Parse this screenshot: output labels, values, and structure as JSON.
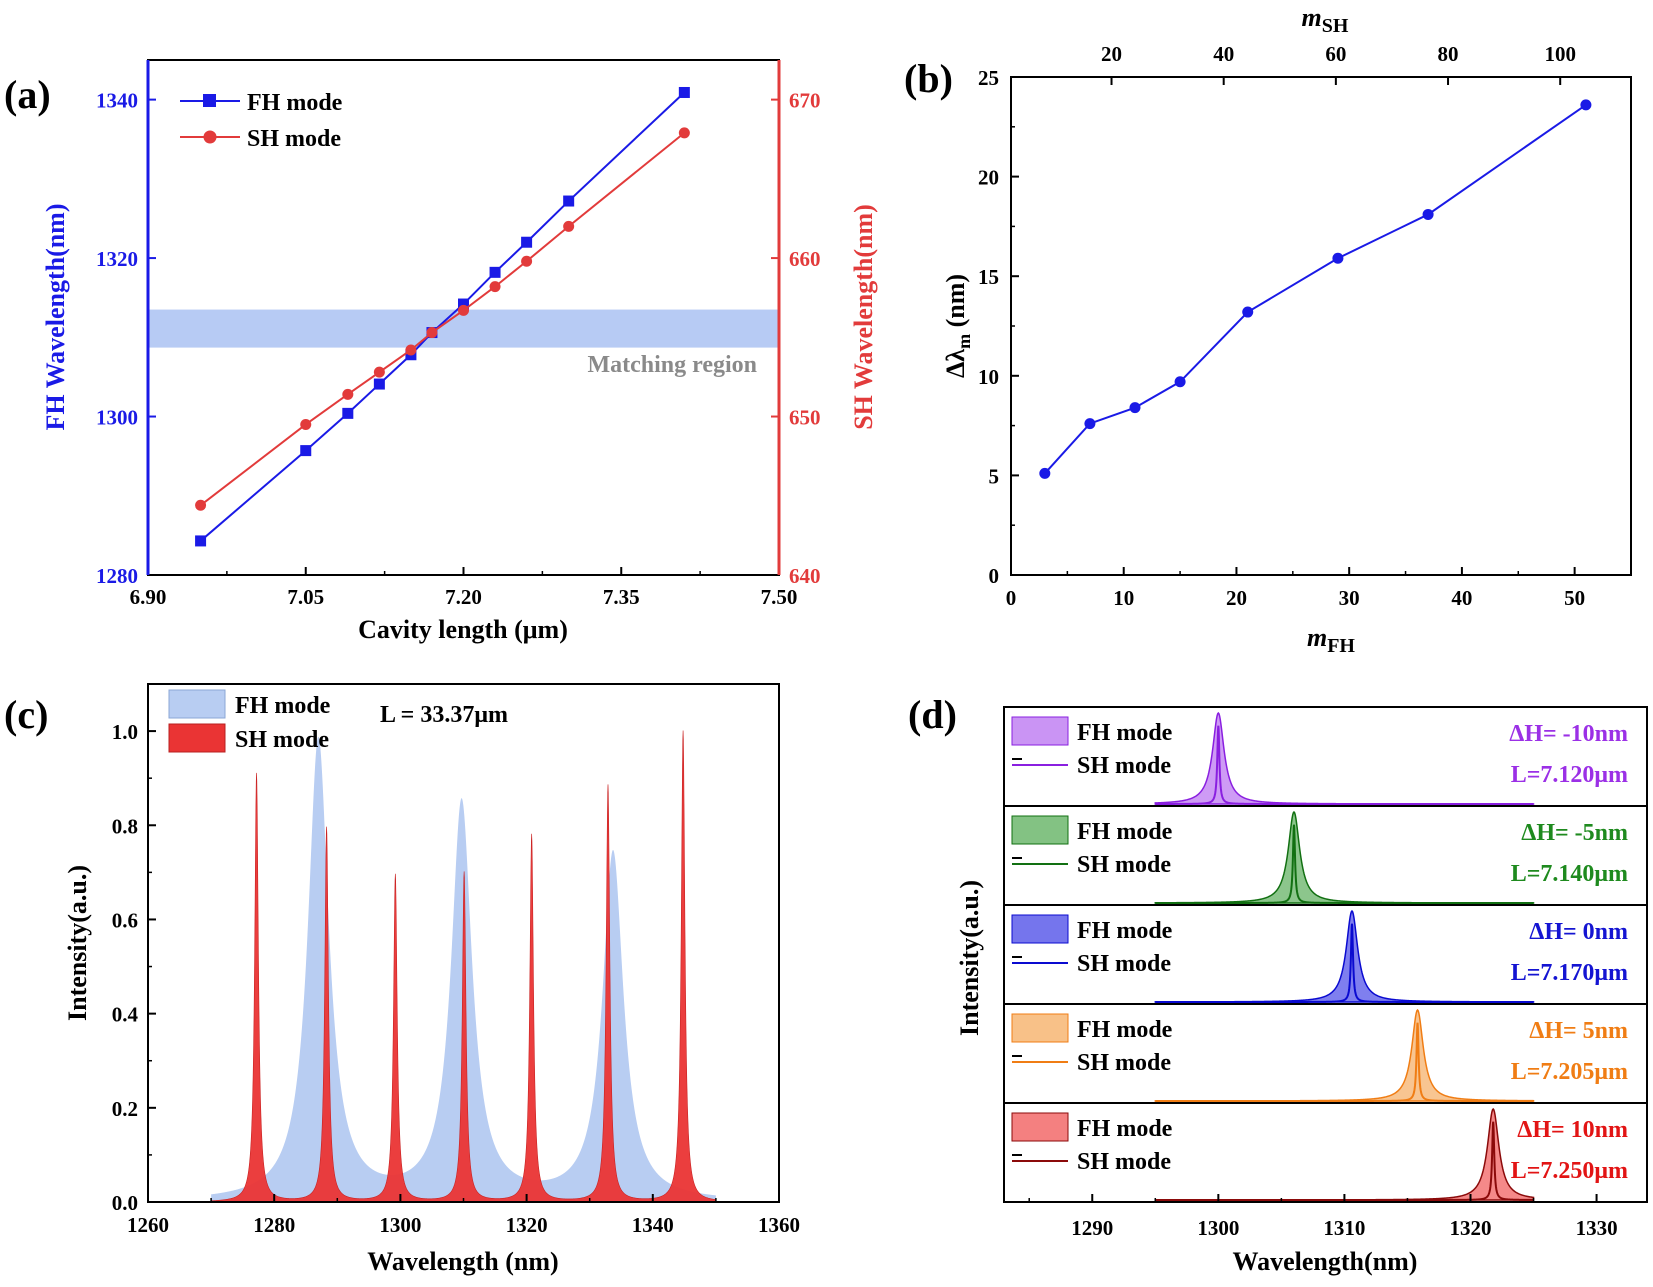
{
  "colors": {
    "blue": "#1a1ae6",
    "red": "#e23b3b",
    "light_blue": "#b8cdf2",
    "fill_red": "#ea3434",
    "gray_text": "#8a8a8a",
    "band": "#b7cbf4"
  },
  "chart_data": [
    {
      "panel": "(a)",
      "type": "line",
      "title": "",
      "xlabel": "Cavity length (μm)",
      "ylabel_left": "FH Wavelength(nm)",
      "ylabel_right": "SH Wavelength(nm)",
      "xlim": [
        6.9,
        7.5
      ],
      "ylim_left": [
        1280,
        1345
      ],
      "ylim_right": [
        640,
        672.5
      ],
      "xticks": [
        "6.90",
        "7.05",
        "7.20",
        "7.35",
        "7.50"
      ],
      "yticks_left": [
        "1280",
        "1300",
        "1320",
        "1340"
      ],
      "yticks_right": [
        "640",
        "650",
        "660",
        "670"
      ],
      "legend_position": "top-left",
      "annotation": "Matching region",
      "matching_region_fh": [
        1308.7,
        1313.5
      ],
      "series": [
        {
          "name": "FH mode",
          "axis": "left",
          "marker": "square",
          "x": [
            6.95,
            7.05,
            7.09,
            7.12,
            7.15,
            7.17,
            7.2,
            7.23,
            7.26,
            7.3,
            7.41
          ],
          "y": [
            1284.3,
            1295.7,
            1300.4,
            1304.1,
            1307.8,
            1310.6,
            1314.2,
            1318.2,
            1322.0,
            1327.2,
            1340.9
          ]
        },
        {
          "name": "SH mode",
          "axis": "right",
          "marker": "circle",
          "x": [
            6.95,
            7.05,
            7.09,
            7.12,
            7.15,
            7.17,
            7.2,
            7.23,
            7.26,
            7.3,
            7.41
          ],
          "y": [
            644.4,
            649.5,
            651.4,
            652.8,
            654.2,
            655.3,
            656.7,
            658.2,
            659.8,
            662.0,
            667.9
          ]
        }
      ]
    },
    {
      "panel": "(b)",
      "type": "line",
      "title": "",
      "xlabel": "m_FH",
      "xlabel_main": "m",
      "xlabel_sub": "FH",
      "xlabel_top": "m_SH",
      "xlabel_top_main": "m",
      "xlabel_top_sub": "SH",
      "ylabel": "Δλm (nm)",
      "ylabel_main": "Δλ",
      "ylabel_sub": "m",
      "ylabel_unit": " (nm)",
      "xlim": [
        0,
        55
      ],
      "ylim": [
        0,
        25
      ],
      "xticks": [
        "0",
        "10",
        "20",
        "30",
        "40",
        "50"
      ],
      "yticks": [
        "0",
        "5",
        "10",
        "15",
        "20",
        "25"
      ],
      "xticks_top": [
        "20",
        "40",
        "60",
        "80",
        "100"
      ],
      "xticks_top_values": [
        20,
        40,
        60,
        80,
        100
      ],
      "series": [
        {
          "name": "Δλm",
          "x": [
            3,
            7,
            11,
            15,
            21,
            29,
            37,
            51
          ],
          "y": [
            5.1,
            7.6,
            8.4,
            9.7,
            13.2,
            15.9,
            18.1,
            23.6
          ]
        }
      ]
    },
    {
      "panel": "(c)",
      "type": "area",
      "title": "",
      "xlabel": "Wavelength (nm)",
      "ylabel": "Intensity(a.u.)",
      "xlim": [
        1260,
        1360
      ],
      "ylim": [
        0,
        1.1
      ],
      "xticks": [
        "1260",
        "1280",
        "1300",
        "1320",
        "1340",
        "1360"
      ],
      "yticks": [
        "0.0",
        "0.2",
        "0.4",
        "0.6",
        "0.8",
        "1.0"
      ],
      "annotation": "L = 33.37μm",
      "range": [
        1270,
        1350
      ],
      "legend_position": "top-left",
      "series": [
        {
          "name": "FH mode",
          "peaks": [
            1287,
            1309.7,
            1333.7
          ],
          "heights": [
            0.98,
            0.845,
            0.74
          ],
          "width": 2.0
        },
        {
          "name": "SH mode",
          "peaks": [
            1277.2,
            1288.3,
            1299.2,
            1310.1,
            1320.8,
            1332.9,
            1344.8
          ],
          "heights": [
            0.91,
            0.795,
            0.695,
            0.7,
            0.78,
            0.885,
            1.0
          ],
          "width": 0.35
        }
      ]
    },
    {
      "panel": "(d)",
      "type": "area",
      "title": "",
      "xlabel": "Wavelength(nm)",
      "ylabel": "Intensity(a.u.)",
      "xlim": [
        1283,
        1334
      ],
      "xticks": [
        "1290",
        "1300",
        "1310",
        "1320",
        "1330"
      ],
      "range": [
        1295,
        1325
      ],
      "legend_labels": [
        "FH mode",
        "SH mode"
      ],
      "subplots": [
        {
          "delta": "ΔH= -10nm",
          "length": "L=7.120μm",
          "peak": 1300.0,
          "color": "#9b30e6",
          "fill": "#b366ef",
          "line": "#8a1fe0"
        },
        {
          "delta": "ΔH= -5nm",
          "length": "L=7.140μm",
          "peak": 1306.0,
          "color": "#1e8a1e",
          "fill": "#4fa84f",
          "line": "#127012"
        },
        {
          "delta": "ΔH= 0nm",
          "length": "L=7.170μm",
          "peak": 1310.6,
          "color": "#1414d2",
          "fill": "#3a3ae6",
          "line": "#0a0ad0"
        },
        {
          "delta": "ΔH= 5nm",
          "length": "L=7.205μm",
          "peak": 1315.8,
          "color": "#f07d14",
          "fill": "#f5a656",
          "line": "#f07d14"
        },
        {
          "delta": "ΔH= 10nm",
          "length": "L=7.250μm",
          "peak": 1321.8,
          "color": "#e21414",
          "fill": "#ef4a4a",
          "line": "#8b0a0a"
        }
      ]
    }
  ]
}
